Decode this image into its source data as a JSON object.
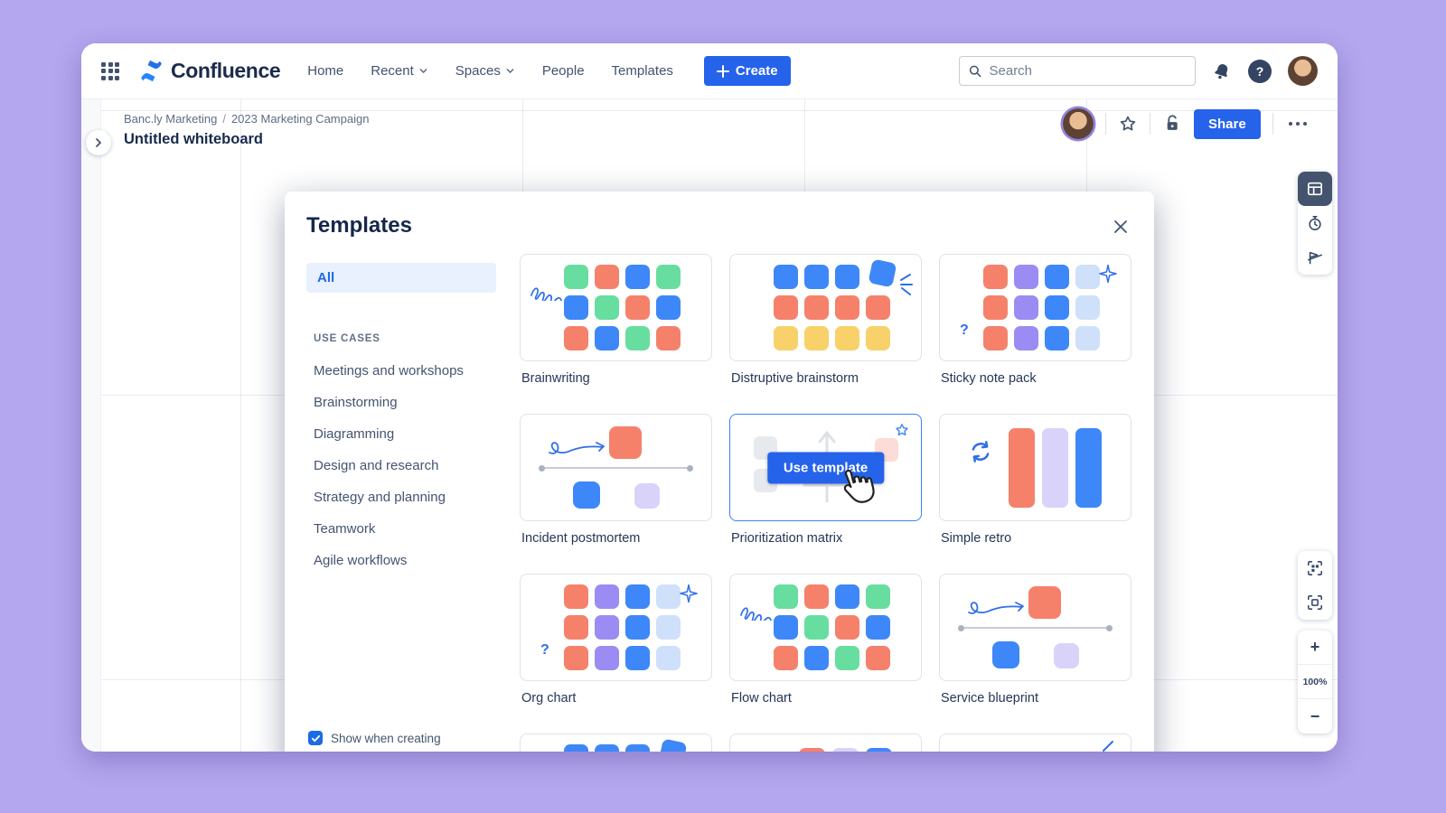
{
  "colors": {
    "green": "#67de9f",
    "salmon": "#f5816b",
    "blue": "#3e87f8",
    "yellow": "#f8d16b",
    "purple": "#9b8cf3",
    "lightblue": "#cfe0fb",
    "lavender": "#d9d2f9",
    "accent": "#2563eb"
  },
  "header": {
    "app_name": "Confluence",
    "nav_items": [
      {
        "label": "Home",
        "chevron": false
      },
      {
        "label": "Recent",
        "chevron": true
      },
      {
        "label": "Spaces",
        "chevron": true
      },
      {
        "label": "People",
        "chevron": false
      },
      {
        "label": "Templates",
        "chevron": false
      }
    ],
    "create_label": "Create",
    "search_placeholder": "Search",
    "help_glyph": "?"
  },
  "board": {
    "breadcrumb": {
      "part1": "Banc.ly Marketing",
      "separator": "/",
      "part2": "2023 Marketing Campaign"
    },
    "title": "Untitled whiteboard",
    "share_label": "Share",
    "zoom_level": "100%",
    "zoom_in_glyph": "+",
    "zoom_out_glyph": "−"
  },
  "modal": {
    "title": "Templates",
    "filter_all": "All",
    "section_label": "USE CASES",
    "use_cases": [
      "Meetings and workshops",
      "Brainstorming",
      "Diagramming",
      "Design and research",
      "Strategy and planning",
      "Teamwork",
      "Agile workflows"
    ],
    "use_template_label": "Use template",
    "show_when_creating_label": "Show when creating",
    "question_glyph": "?",
    "templates": [
      {
        "name": "Brainwriting",
        "thumb": "grid-squiggle"
      },
      {
        "name": "Distruptive brainstorm",
        "thumb": "grid-tilt"
      },
      {
        "name": "Sticky note pack",
        "thumb": "grid-sparkle"
      },
      {
        "name": "Incident postmortem",
        "thumb": "timeline"
      },
      {
        "name": "Prioritization matrix",
        "thumb": "hover",
        "hovered": true
      },
      {
        "name": "Simple retro",
        "thumb": "retro"
      },
      {
        "name": "Org chart",
        "thumb": "grid-sparkle"
      },
      {
        "name": "Flow chart",
        "thumb": "grid-squiggle"
      },
      {
        "name": "Service blueprint",
        "thumb": "timeline"
      },
      {
        "name": "",
        "thumb": "grid-tilt"
      },
      {
        "name": "",
        "thumb": "retro"
      },
      {
        "name": "",
        "thumb": "spark"
      }
    ],
    "thumb_grids": {
      "grid-squiggle": [
        [
          "green",
          "salmon",
          "blue",
          "green"
        ],
        [
          "blue",
          "green",
          "salmon",
          "blue"
        ],
        [
          "salmon",
          "blue",
          "green",
          "salmon"
        ]
      ],
      "grid-tilt": [
        [
          "blue",
          "blue",
          "blue",
          "blue"
        ],
        [
          "salmon",
          "salmon",
          "salmon",
          "salmon"
        ],
        [
          "yellow",
          "yellow",
          "yellow",
          "yellow"
        ]
      ],
      "grid-sparkle": [
        [
          "salmon",
          "purple",
          "blue",
          "lightblue"
        ],
        [
          "salmon",
          "purple",
          "blue",
          "lightblue"
        ],
        [
          "salmon",
          "purple",
          "blue",
          "lightblue"
        ]
      ]
    }
  }
}
